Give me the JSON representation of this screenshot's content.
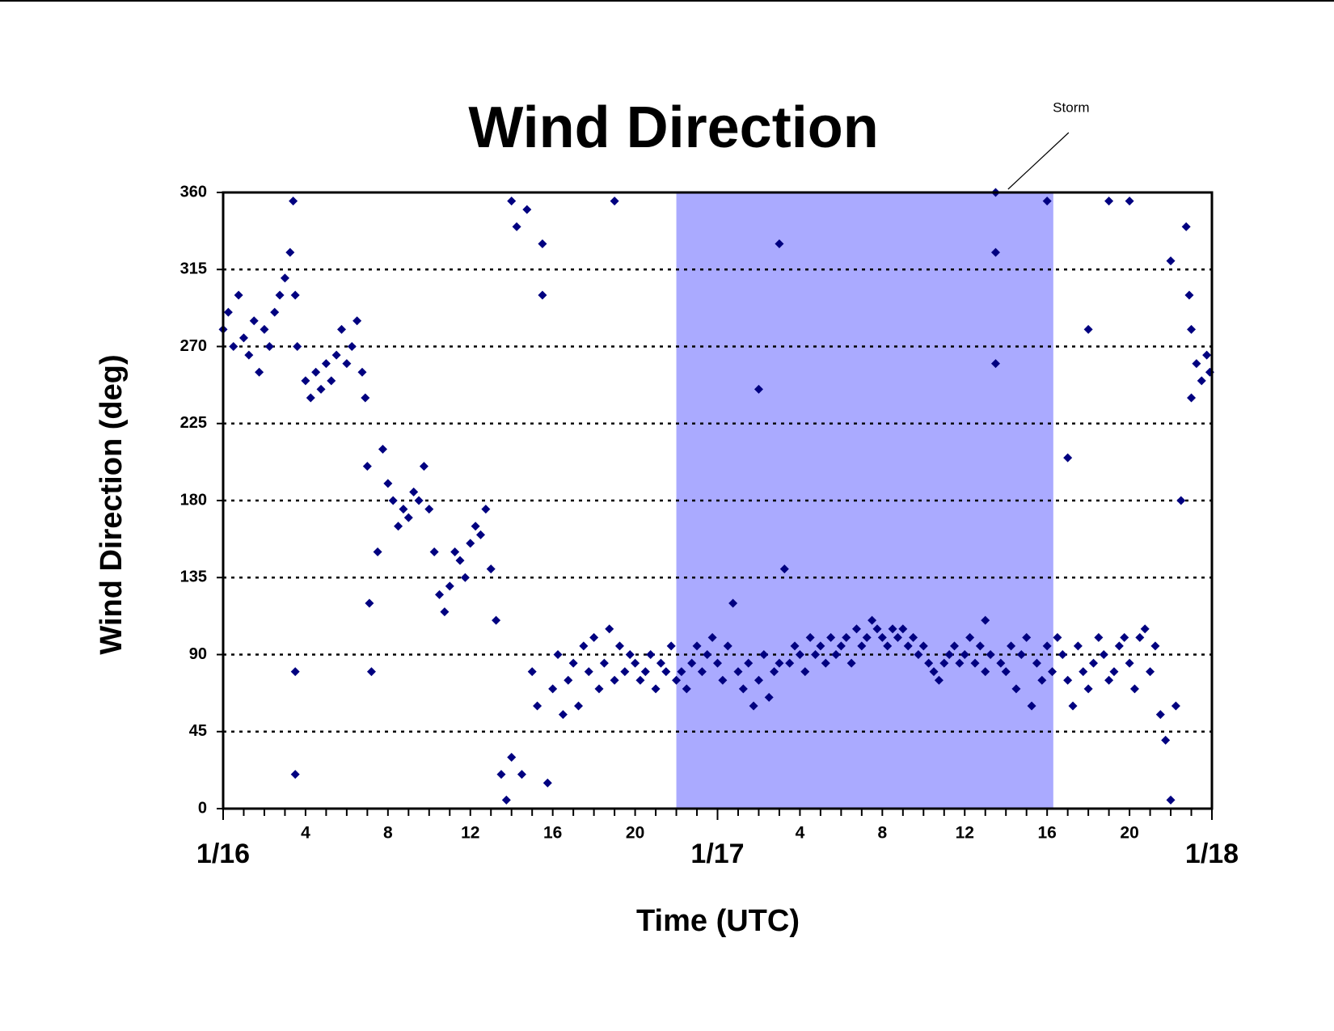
{
  "chart_data": {
    "type": "scatter",
    "title": "Wind Direction",
    "xlabel": "Time (UTC)",
    "ylabel": "Wind Direction (deg)",
    "color": "#000080",
    "grid": true,
    "xlim": [
      0,
      48
    ],
    "ylim": [
      0,
      360
    ],
    "yticks": [
      0,
      45,
      90,
      135,
      180,
      225,
      270,
      315,
      360
    ],
    "xticks": [
      4,
      8,
      12,
      16,
      20,
      {
        "value": 28,
        "label": "4"
      },
      {
        "value": 32,
        "label": "8"
      },
      {
        "value": 36,
        "label": "12"
      },
      {
        "value": 40,
        "label": "16"
      },
      {
        "value": 44,
        "label": "20"
      }
    ],
    "xdayticks": [
      {
        "value": 0,
        "label": "1/16"
      },
      {
        "value": 24,
        "label": "1/17"
      },
      {
        "value": 48,
        "label": "1/18"
      }
    ],
    "xminorticks": [
      0,
      1,
      2,
      3,
      4,
      5,
      6,
      7,
      8,
      9,
      10,
      11,
      12,
      13,
      14,
      15,
      16,
      17,
      18,
      19,
      20,
      21,
      22,
      23,
      24,
      25,
      26,
      27,
      28,
      29,
      30,
      31,
      32,
      33,
      34,
      35,
      36,
      37,
      38,
      39,
      40,
      41,
      42,
      43,
      44,
      45,
      46,
      47,
      48
    ],
    "shaded_regions": [
      {
        "label": "Storm",
        "x": [
          22,
          40.3
        ],
        "color": "#aaaaff"
      }
    ],
    "x": [
      0,
      0.25,
      0.5,
      0.75,
      1,
      1.25,
      1.5,
      1.75,
      2,
      2.25,
      2.5,
      2.75,
      3,
      3.25,
      3.4,
      3.5,
      3.6,
      3.5,
      3.5,
      4,
      4.25,
      4.5,
      4.75,
      5,
      5.25,
      5.5,
      5.75,
      6,
      6.25,
      6.5,
      6.75,
      6.9,
      7,
      7.1,
      7.2,
      7.5,
      7.75,
      8,
      8.25,
      8.5,
      8.75,
      9,
      9.25,
      9.5,
      9.75,
      10,
      10.25,
      10.5,
      10.75,
      11,
      11.25,
      11.5,
      11.75,
      12,
      12.25,
      12.5,
      12.75,
      13,
      13.25,
      13.5,
      13.75,
      14,
      14,
      14.25,
      14.5,
      14.75,
      15,
      15.25,
      15.5,
      15.5,
      15.75,
      16,
      16.25,
      16.5,
      16.75,
      17,
      17.25,
      17.5,
      17.75,
      18,
      18.25,
      18.5,
      18.75,
      19,
      19,
      19.25,
      19.5,
      19.75,
      20,
      20.25,
      20.5,
      20.75,
      21,
      21.25,
      21.5,
      21.75,
      22,
      22.25,
      22.5,
      22.75,
      23,
      23.25,
      23.5,
      23.75,
      24,
      24.25,
      24.5,
      24.75,
      25,
      25.25,
      25.5,
      25.75,
      26,
      26,
      26.25,
      26.5,
      26.75,
      27,
      27,
      27.25,
      27.5,
      27.75,
      28,
      28.25,
      28.5,
      28.75,
      29,
      29.25,
      29.5,
      29.75,
      30,
      30.25,
      30.5,
      30.75,
      31,
      31.25,
      31.5,
      31.75,
      32,
      32.25,
      32.5,
      32.75,
      33,
      33.25,
      33.5,
      33.75,
      34,
      34.25,
      34.5,
      34.75,
      35,
      35.25,
      35.5,
      35.75,
      36,
      36.25,
      36.5,
      36.75,
      37,
      37,
      37.25,
      37.5,
      37.5,
      37.5,
      37.75,
      38,
      38.25,
      38.5,
      38.75,
      39,
      39.25,
      39.5,
      39.75,
      40,
      40,
      40.25,
      40.5,
      40.75,
      41,
      41,
      41.25,
      41.5,
      41.75,
      42,
      42,
      42.25,
      42.5,
      42.75,
      43,
      43,
      43.25,
      43.5,
      43.75,
      44,
      44,
      44.25,
      44.5,
      44.75,
      45,
      45.25,
      45.5,
      45.75,
      46,
      46,
      46.25,
      46.5,
      46.75,
      47,
      47.25,
      47.5,
      47.75,
      47.9,
      47,
      46.9
    ],
    "values": [
      280,
      290,
      270,
      300,
      275,
      265,
      285,
      255,
      280,
      270,
      290,
      300,
      310,
      325,
      355,
      300,
      270,
      80,
      20,
      250,
      240,
      255,
      245,
      260,
      250,
      265,
      280,
      260,
      270,
      285,
      255,
      240,
      200,
      120,
      80,
      150,
      210,
      190,
      180,
      165,
      175,
      170,
      185,
      180,
      200,
      175,
      150,
      125,
      115,
      130,
      150,
      145,
      135,
      155,
      165,
      160,
      175,
      140,
      110,
      20,
      5,
      30,
      355,
      340,
      20,
      350,
      80,
      60,
      330,
      300,
      15,
      70,
      90,
      55,
      75,
      85,
      60,
      95,
      80,
      100,
      70,
      85,
      105,
      75,
      355,
      95,
      80,
      90,
      85,
      75,
      80,
      90,
      70,
      85,
      80,
      95,
      75,
      80,
      70,
      85,
      95,
      80,
      90,
      100,
      85,
      75,
      95,
      120,
      80,
      70,
      85,
      60,
      75,
      245,
      90,
      65,
      80,
      85,
      330,
      140,
      85,
      95,
      90,
      80,
      100,
      90,
      95,
      85,
      100,
      90,
      95,
      100,
      85,
      105,
      95,
      100,
      110,
      105,
      100,
      95,
      105,
      100,
      105,
      95,
      100,
      90,
      95,
      85,
      80,
      75,
      85,
      90,
      95,
      85,
      90,
      100,
      85,
      95,
      80,
      110,
      90,
      360,
      325,
      260,
      85,
      80,
      95,
      70,
      90,
      100,
      60,
      85,
      75,
      95,
      355,
      80,
      100,
      90,
      75,
      205,
      60,
      95,
      80,
      70,
      280,
      85,
      100,
      90,
      75,
      355,
      80,
      95,
      100,
      85,
      355,
      70,
      100,
      105,
      80,
      95,
      55,
      40,
      5,
      320,
      60,
      180,
      340,
      280,
      260,
      250,
      265,
      255,
      240,
      300
    ]
  }
}
